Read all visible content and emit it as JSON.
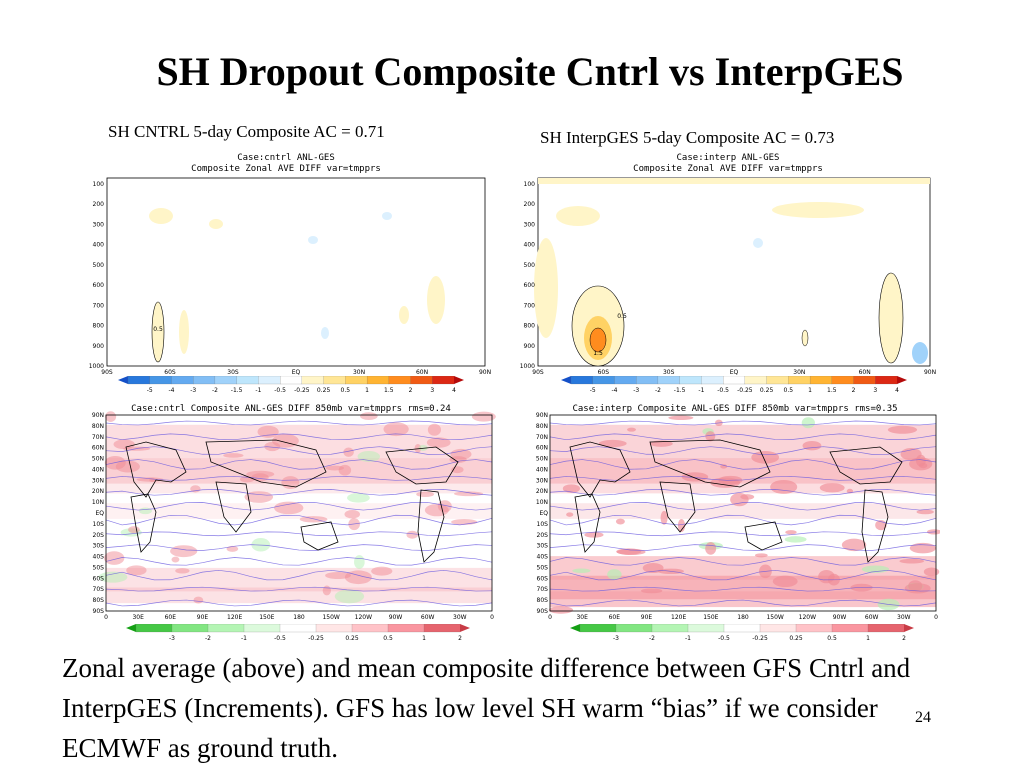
{
  "slide": {
    "title": "SH Dropout Composite Cntrl vs InterpGES",
    "left_caption": "SH CNTRL 5-day Composite AC = 0.71",
    "right_caption": "SH InterpGES 5-day Composite AC = 0.73",
    "body_text": "Zonal average (above) and mean composite difference between GFS Cntrl and InterpGES (Increments).  GFS has low level SH warm “bias” if we consider ECMWF as ground truth.",
    "page_number": "24"
  },
  "panels": {
    "zonal_left": {
      "head1": "Case:cntrl  ANL-GES",
      "head2": "Composite  Zonal  AVE  DIFF  var=tmpprs"
    },
    "zonal_right": {
      "head1": "Case:interp  ANL-GES",
      "head2": "Composite  Zonal  AVE  DIFF  var=tmpprs"
    },
    "map_left": {
      "head": "Case:cntrl  Composite  ANL-GES  DIFF  850mb  var=tmpprs  rms=0.24"
    },
    "map_right": {
      "head": "Case:interp  Composite  ANL-GES  DIFF  850mb  var=tmpprs  rms=0.35"
    }
  },
  "zonal_axes": {
    "y_ticks": [
      "100",
      "200",
      "300",
      "400",
      "500",
      "600",
      "700",
      "800",
      "900",
      "1000"
    ],
    "x_ticks": [
      "90S",
      "60S",
      "30S",
      "EQ",
      "30N",
      "60N",
      "90N"
    ],
    "contour_labels": [
      "0.5",
      "0.5",
      "1.5"
    ]
  },
  "map_axes": {
    "y_ticks": [
      "90N",
      "80N",
      "70N",
      "60N",
      "50N",
      "40N",
      "30N",
      "20N",
      "10N",
      "EQ",
      "10S",
      "20S",
      "30S",
      "40S",
      "50S",
      "60S",
      "70S",
      "80S",
      "90S"
    ],
    "x_ticks": [
      "0",
      "30E",
      "60E",
      "90E",
      "120E",
      "150E",
      "180",
      "150W",
      "120W",
      "90W",
      "60W",
      "30W",
      "0"
    ]
  },
  "colorbars": {
    "zonal_labels": [
      "-5",
      "-4",
      "-3",
      "-2",
      "-1.5",
      "-1",
      "-0.5",
      "-0.25",
      "0.25",
      "0.5",
      "1",
      "1.5",
      "2",
      "3",
      "4",
      "5"
    ],
    "zonal_colors": [
      "#1450c8",
      "#2878dc",
      "#4696e6",
      "#64aaf0",
      "#82bef5",
      "#a0d2fa",
      "#bee6fc",
      "#dcf0fe",
      "#ffffff",
      "#fff5c8",
      "#ffe696",
      "#ffd264",
      "#ffb432",
      "#ff8c1e",
      "#f05a14",
      "#dc2814",
      "#b40a0a"
    ],
    "map_labels": [
      "-3",
      "-2",
      "-1",
      "-0.5",
      "-0.25",
      "0.25",
      "0.5",
      "1",
      "2",
      "3"
    ],
    "map_colors": [
      "#14a014",
      "#46c846",
      "#82e682",
      "#b4f5b4",
      "#dcfadc",
      "#ffffff",
      "#ffe6e6",
      "#ffc3c8",
      "#fa96a0",
      "#e6646e",
      "#c83c46"
    ]
  }
}
